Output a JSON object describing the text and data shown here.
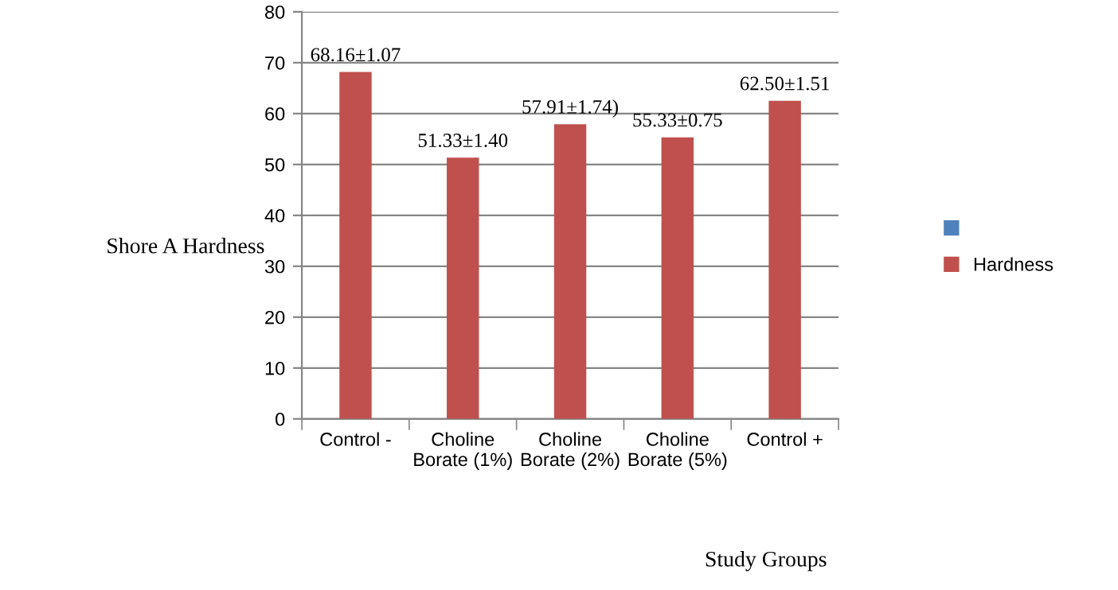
{
  "chart_data": {
    "type": "bar",
    "ylabel": "Shore A Hardness",
    "xlabel": "Study Groups",
    "categories": [
      "Control -",
      "Choline Borate (1%)",
      "Choline Borate (2%)",
      "Choline Borate (5%)",
      "Control +"
    ],
    "series": [
      {
        "color": "#4f81bd",
        "values": [
          null,
          null,
          null,
          null,
          null
        ]
      },
      {
        "name": "Hardness",
        "color": "#c0504d",
        "values": [
          68.16,
          51.33,
          57.91,
          55.33,
          62.5
        ],
        "value_labels": [
          "68.16±1.07",
          "51.33±1.40",
          "57.91±1.74)",
          "55.33±0.75",
          "62.50±1.51"
        ]
      }
    ],
    "ylim": [
      0,
      80
    ],
    "yticks": [
      0,
      10,
      20,
      30,
      40,
      50,
      60,
      70,
      80
    ],
    "grid": "y",
    "legend": "right"
  }
}
